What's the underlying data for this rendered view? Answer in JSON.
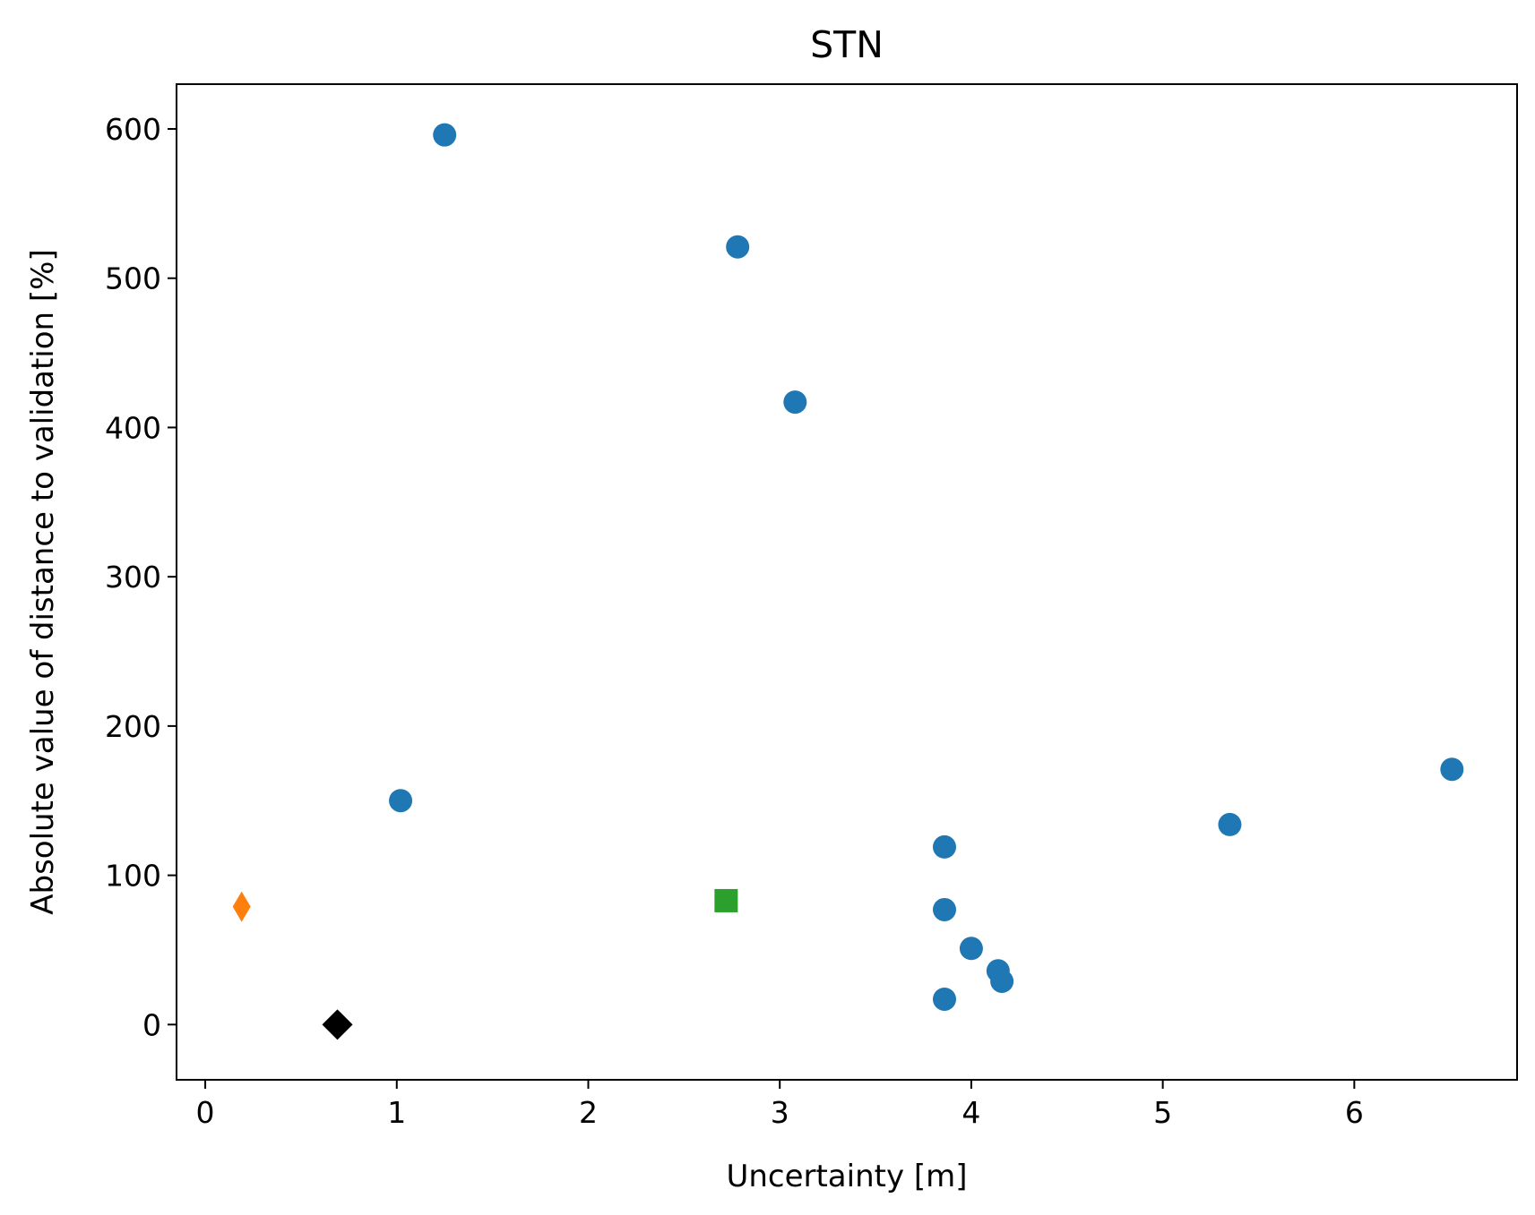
{
  "chart_data": {
    "type": "scatter",
    "title": "STN",
    "xlabel": "Uncertainty [m]",
    "ylabel": "Absolute value of distance to validation [%]",
    "xlim": [
      -0.15,
      6.85
    ],
    "ylim": [
      -37,
      630
    ],
    "xticks": [
      "0",
      "1",
      "2",
      "3",
      "4",
      "5",
      "6"
    ],
    "yticks": [
      "0",
      "100",
      "200",
      "300",
      "400",
      "500",
      "600"
    ],
    "grid": false,
    "legend": "none",
    "series": [
      {
        "marker": "circle",
        "color": "#1f77b4",
        "points": [
          {
            "x": 1.25,
            "y": 596
          },
          {
            "x": 2.78,
            "y": 521
          },
          {
            "x": 3.08,
            "y": 417
          },
          {
            "x": 1.02,
            "y": 150
          },
          {
            "x": 3.86,
            "y": 119
          },
          {
            "x": 3.86,
            "y": 77
          },
          {
            "x": 4.0,
            "y": 51
          },
          {
            "x": 4.14,
            "y": 36
          },
          {
            "x": 4.16,
            "y": 29
          },
          {
            "x": 3.86,
            "y": 17
          },
          {
            "x": 5.35,
            "y": 134
          },
          {
            "x": 6.51,
            "y": 171
          }
        ]
      },
      {
        "marker": "thin-diamond",
        "color": "#ff7f0e",
        "points": [
          {
            "x": 0.19,
            "y": 79
          }
        ]
      },
      {
        "marker": "square",
        "color": "#2ca02c",
        "points": [
          {
            "x": 2.72,
            "y": 83
          }
        ]
      },
      {
        "marker": "diamond",
        "color": "#000000",
        "points": [
          {
            "x": 0.69,
            "y": 0
          }
        ]
      }
    ]
  }
}
